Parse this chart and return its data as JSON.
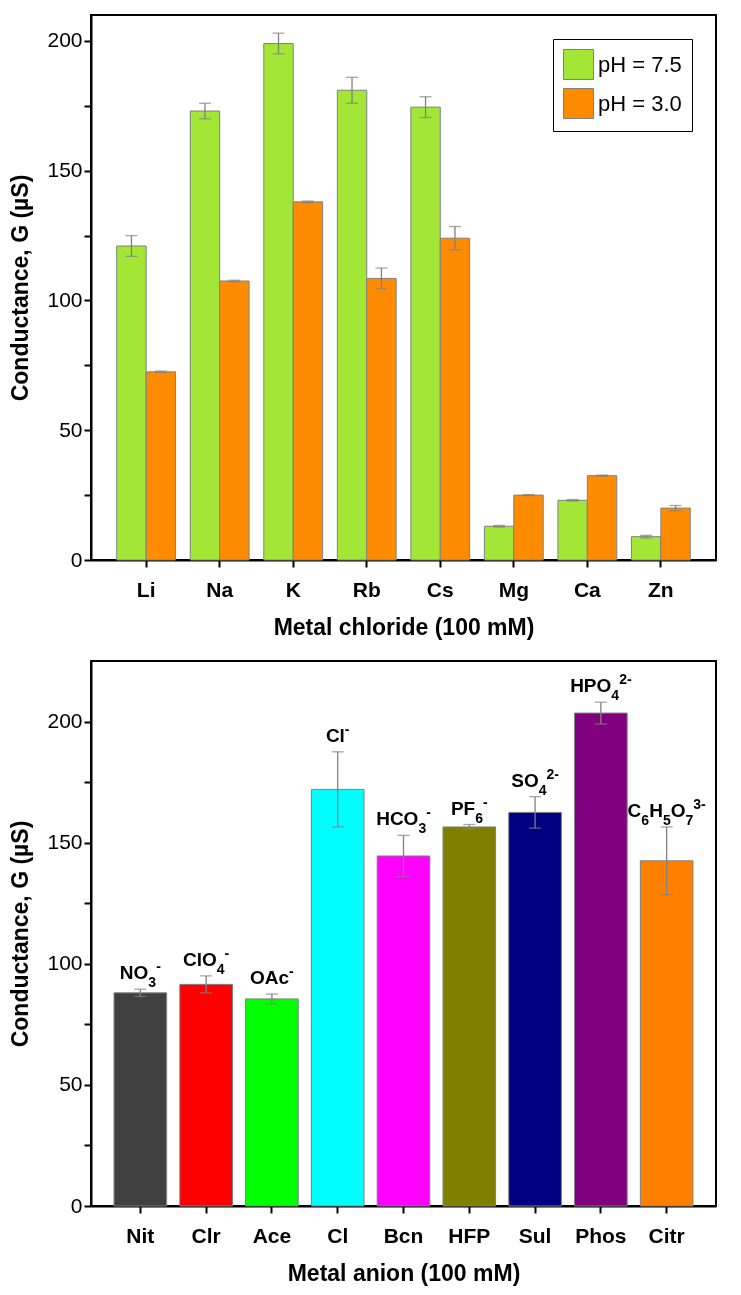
{
  "chart_data": [
    {
      "type": "bar",
      "xlabel": "Metal chloride (100 mM)",
      "ylabel": "Conductance, G (µS)",
      "categories": [
        "Li",
        "Na",
        "K",
        "Rb",
        "Cs",
        "Mg",
        "Ca",
        "Zn"
      ],
      "series": [
        {
          "name": "pH = 7.5",
          "color": "#a3e635",
          "values": [
            121,
            173,
            199,
            181,
            174.5,
            13,
            23,
            9
          ],
          "errors": [
            4,
            3,
            4,
            5,
            4,
            0.3,
            0.3,
            0.5
          ]
        },
        {
          "name": "pH = 3.0",
          "color": "#ff8c00",
          "values": [
            72.5,
            107.5,
            138,
            108.5,
            124,
            25,
            32.5,
            20
          ],
          "errors": [
            0.3,
            0.3,
            0.3,
            4,
            4.5,
            0.2,
            0.2,
            1
          ]
        }
      ],
      "ylim": [
        0,
        210
      ],
      "yticks": [
        0,
        {
          "value": 25,
          "label": null
        },
        50,
        {
          "value": 75,
          "label": null
        },
        100,
        {
          "value": 125,
          "label": null
        },
        150,
        {
          "value": 175,
          "label": null
        },
        200
      ],
      "legend": "top right"
    },
    {
      "type": "bar",
      "xlabel": "Metal anion (100 mM)",
      "ylabel": "Conductance, G (µS)",
      "categories": [
        "Nit",
        "Clr",
        "Ace",
        "Cl",
        "Bcn",
        "HFP",
        "Sul",
        "Phos",
        "Citr"
      ],
      "values": [
        88,
        91.5,
        85.5,
        172,
        144.5,
        156.5,
        162.5,
        203.5,
        142.5
      ],
      "errors": [
        1.5,
        3.5,
        2,
        15.5,
        8.5,
        1,
        6.5,
        4.5,
        14
      ],
      "colors": [
        "#404040",
        "#ff0000",
        "#00ff00",
        "#00ffff",
        "#ff00ff",
        "#808000",
        "#000080",
        "#800080",
        "#ff8000"
      ],
      "ylim": [
        0,
        225
      ],
      "yticks": [
        0,
        {
          "value": 25,
          "label": null
        },
        50,
        {
          "value": 75,
          "label": null
        },
        100,
        {
          "value": 125,
          "label": null
        },
        150,
        {
          "value": 175,
          "label": null
        },
        200
      ],
      "annotations": [
        {
          "text": "NO$_{3}$$^{-}$",
          "x": "Nit",
          "y": 88
        },
        {
          "text": "ClO$_{4}$$^{-}$",
          "x": "Clr",
          "y": 91.5
        },
        {
          "text": "OAc$^{-}$",
          "x": "Ace",
          "y": 85.5
        },
        {
          "text": "Cl$^{-}$",
          "x": "Cl",
          "y": 172
        },
        {
          "text": "HCO$_{3}$$^{-}$",
          "x": "Bcn",
          "y": 144.5
        },
        {
          "text": "PF$_{6}$$^{-}$",
          "x": "HFP",
          "y": 156.5
        },
        {
          "text": "SO$_{4}$$^{2-}$",
          "x": "Sul",
          "y": 162.5
        },
        {
          "text": "HPO$_{4}$$^{2-}$",
          "x": "Phos",
          "y": 203.5
        },
        {
          "text": "C$_{6}$H$_{5}$O$_{7}$$^{3-}$",
          "x": "Citr",
          "y": 142.5
        }
      ]
    }
  ]
}
